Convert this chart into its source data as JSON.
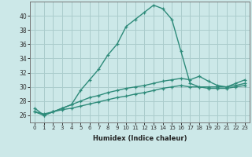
{
  "x": [
    0,
    1,
    2,
    3,
    4,
    5,
    6,
    7,
    8,
    9,
    10,
    11,
    12,
    13,
    14,
    15,
    16,
    17,
    18,
    19,
    20,
    21,
    22,
    23
  ],
  "line1": [
    27,
    26,
    26.5,
    27,
    27.5,
    29.5,
    31,
    32.5,
    34.5,
    36,
    38.5,
    39.5,
    40.5,
    41.5,
    41,
    39.5,
    35,
    30.5,
    30,
    30,
    30,
    30,
    30.5,
    31
  ],
  "line2": [
    26.5,
    26,
    26.5,
    27,
    27.5,
    28.0,
    28.5,
    28.8,
    29.2,
    29.5,
    29.8,
    30.0,
    30.2,
    30.5,
    30.8,
    31.0,
    31.2,
    31.0,
    31.5,
    30.8,
    30.2,
    30.0,
    30.2,
    30.5
  ],
  "line3": [
    26.5,
    26.2,
    26.5,
    26.8,
    27.0,
    27.3,
    27.6,
    27.9,
    28.2,
    28.5,
    28.7,
    29.0,
    29.2,
    29.5,
    29.8,
    30.0,
    30.2,
    30.0,
    30.0,
    29.8,
    29.8,
    29.8,
    30.0,
    30.2
  ],
  "color": "#2e8b7a",
  "bg_color": "#cce8e8",
  "grid_color": "#aacccc",
  "xlabel": "Humidex (Indice chaleur)",
  "ylim": [
    25,
    42
  ],
  "xlim": [
    -0.5,
    23.5
  ],
  "yticks": [
    26,
    28,
    30,
    32,
    34,
    36,
    38,
    40
  ],
  "xticks": [
    0,
    1,
    2,
    3,
    4,
    5,
    6,
    7,
    8,
    9,
    10,
    11,
    12,
    13,
    14,
    15,
    16,
    17,
    18,
    19,
    20,
    21,
    22,
    23
  ],
  "marker": "+",
  "linewidth": 1.0,
  "markersize": 3.5
}
